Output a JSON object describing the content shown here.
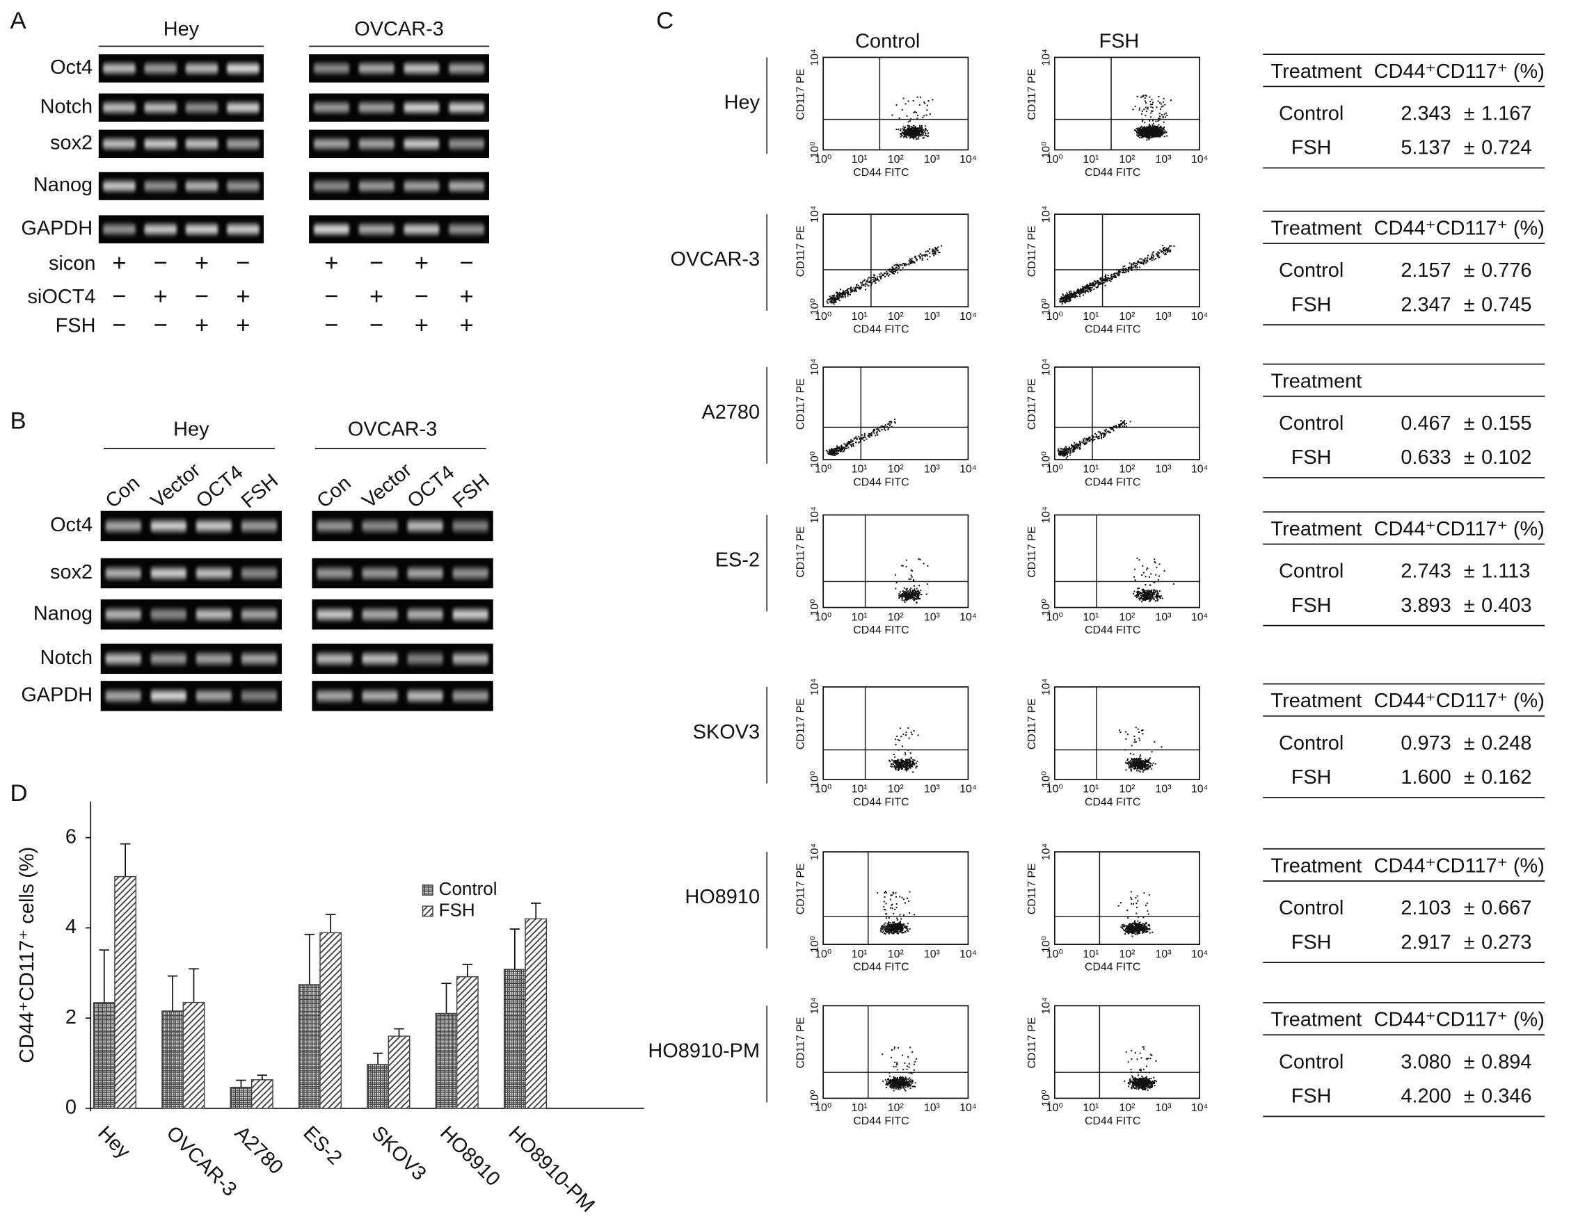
{
  "panel_a": {
    "label": "A",
    "groups": [
      "Hey",
      "OVCAR-3"
    ],
    "genes": [
      "Oct4",
      "Notch",
      "sox2",
      "Nanog",
      "GAPDH"
    ],
    "treatments": [
      {
        "name": "sicon",
        "signs": [
          [
            "+",
            "−",
            "+",
            "−"
          ],
          [
            "+",
            "−",
            "+",
            "−"
          ]
        ]
      },
      {
        "name": "siOCT4",
        "signs": [
          [
            "−",
            "+",
            "−",
            "+"
          ],
          [
            "−",
            "+",
            "−",
            "+"
          ]
        ]
      },
      {
        "name": "FSH",
        "signs": [
          [
            "−",
            "−",
            "+",
            "+"
          ],
          [
            "−",
            "−",
            "+",
            "+"
          ]
        ]
      }
    ]
  },
  "panel_b": {
    "label": "B",
    "groups": [
      "Hey",
      "OVCAR-3"
    ],
    "lanes": [
      "Con",
      "Vector",
      "OCT4",
      "FSH"
    ],
    "genes": [
      "Oct4",
      "sox2",
      "Nanog",
      "Notch",
      "GAPDH"
    ]
  },
  "panel_c": {
    "label": "C",
    "columns": [
      "Control",
      "FSH"
    ],
    "x_axis_label": "CD44 FITC",
    "y_axis_label": "CD117 PE",
    "ticks": [
      "10⁰",
      "10¹",
      "10²",
      "10³",
      "10⁴"
    ],
    "rows": [
      {
        "cell_line": "Hey",
        "header": [
          "Treatment",
          "CD44⁺CD117⁺ (%)"
        ],
        "rows": [
          [
            "Control",
            "2.343",
            "±",
            "1.167"
          ],
          [
            "FSH",
            "5.137",
            "±",
            "0.724"
          ]
        ]
      },
      {
        "cell_line": "OVCAR-3",
        "header": [
          "Treatment",
          "CD44⁺CD117⁺ (%)"
        ],
        "rows": [
          [
            "Control",
            "2.157",
            "±",
            "0.776"
          ],
          [
            "FSH",
            "2.347",
            "±",
            "0.745"
          ]
        ]
      },
      {
        "cell_line": "A2780",
        "header": [
          "Treatment"
        ],
        "rows": [
          [
            "Control",
            "0.467",
            "±",
            "0.155"
          ],
          [
            "FSH",
            "0.633",
            "±",
            "0.102"
          ]
        ]
      },
      {
        "cell_line": "ES-2",
        "header": [
          "Treatment",
          "CD44⁺CD117⁺ (%)"
        ],
        "rows": [
          [
            "Control",
            "2.743",
            "±",
            "1.113"
          ],
          [
            "FSH",
            "3.893",
            "±",
            "0.403"
          ]
        ]
      },
      {
        "cell_line": "SKOV3",
        "header": [
          "Treatment",
          "CD44⁺CD117⁺ (%)"
        ],
        "rows": [
          [
            "Control",
            "0.973",
            "±",
            "0.248"
          ],
          [
            "FSH",
            "1.600",
            "±",
            "0.162"
          ]
        ]
      },
      {
        "cell_line": "HO8910",
        "header": [
          "Treatment",
          "CD44⁺CD117⁺ (%)"
        ],
        "rows": [
          [
            "Control",
            "2.103",
            "±",
            "0.667"
          ],
          [
            "FSH",
            "2.917",
            "±",
            "0.273"
          ]
        ]
      },
      {
        "cell_line": "HO8910-PM",
        "header": [
          "Treatment",
          "CD44⁺CD117⁺ (%)"
        ],
        "rows": [
          [
            "Control",
            "3.080",
            "±",
            "0.894"
          ],
          [
            "FSH",
            "4.200",
            "±",
            "0.346"
          ]
        ]
      }
    ]
  },
  "chart_data": {
    "type": "bar",
    "label": "D",
    "ylabel": "CD44⁺CD117⁺ cells (%)",
    "categories": [
      "Hey",
      "OVCAR-3",
      "A2780",
      "ES-2",
      "SKOV3",
      "HO8910",
      "HO8910-PM"
    ],
    "series": [
      {
        "name": "Control",
        "color": "#444444",
        "pattern": "cross",
        "values": [
          2.343,
          2.157,
          0.467,
          2.743,
          0.973,
          2.103,
          3.08
        ],
        "errors": [
          1.167,
          0.776,
          0.155,
          1.113,
          0.248,
          0.667,
          0.894
        ]
      },
      {
        "name": "FSH",
        "color": "#444444",
        "pattern": "diagonal",
        "values": [
          5.137,
          2.347,
          0.633,
          3.893,
          1.6,
          2.917,
          4.2
        ],
        "errors": [
          0.724,
          0.745,
          0.102,
          0.403,
          0.162,
          0.273,
          0.346
        ]
      }
    ],
    "ylim": [
      0,
      6.8
    ],
    "yticks": [
      0,
      2,
      4,
      6
    ]
  }
}
